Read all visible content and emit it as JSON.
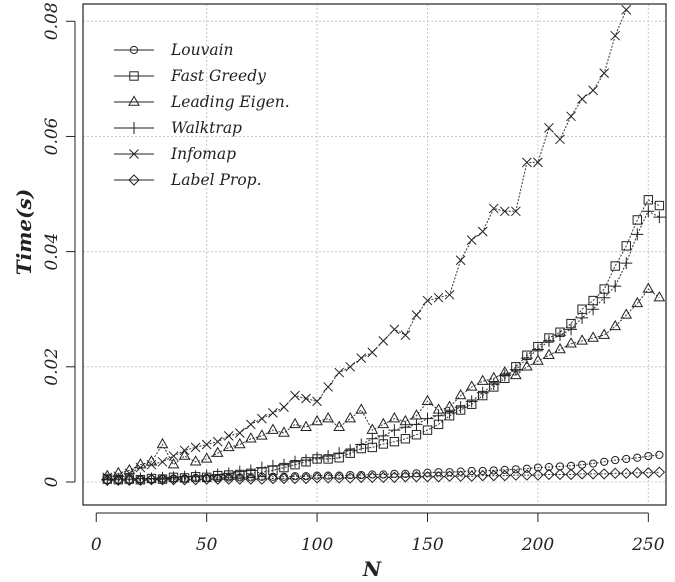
{
  "chart_data": {
    "type": "line",
    "xlabel": "N",
    "ylabel": "Time(s)",
    "xlim": [
      -6,
      258
    ],
    "ylim": [
      -0.004,
      0.083
    ],
    "xticks": [
      0,
      50,
      100,
      150,
      200,
      250
    ],
    "xtick_labels": [
      "0",
      "50",
      "100",
      "150",
      "200",
      "250"
    ],
    "yticks": [
      0,
      0.02,
      0.04,
      0.06,
      0.08
    ],
    "ytick_labels": [
      "0",
      "0.02",
      "0.04",
      "0.06",
      "0.08"
    ],
    "grid": true,
    "legend_position": "top-left",
    "series": [
      {
        "name": "Louvain",
        "marker": "circle",
        "x": [
          5,
          10,
          15,
          20,
          25,
          30,
          35,
          40,
          45,
          50,
          55,
          60,
          65,
          70,
          75,
          80,
          85,
          90,
          95,
          100,
          105,
          110,
          115,
          120,
          125,
          130,
          135,
          140,
          145,
          150,
          155,
          160,
          165,
          170,
          175,
          180,
          185,
          190,
          195,
          200,
          205,
          210,
          215,
          220,
          225,
          230,
          235,
          240,
          245,
          250,
          255
        ],
        "values": [
          0.0003,
          0.0004,
          0.0004,
          0.0005,
          0.0005,
          0.0006,
          0.0006,
          0.0006,
          0.0007,
          0.0007,
          0.0007,
          0.0008,
          0.0008,
          0.0008,
          0.0009,
          0.0009,
          0.0009,
          0.001,
          0.001,
          0.0011,
          0.0011,
          0.0011,
          0.0012,
          0.0012,
          0.0013,
          0.0013,
          0.0014,
          0.0014,
          0.0015,
          0.0016,
          0.0017,
          0.0017,
          0.0018,
          0.0019,
          0.0019,
          0.002,
          0.0021,
          0.0022,
          0.0023,
          0.0025,
          0.0026,
          0.0027,
          0.0028,
          0.003,
          0.0032,
          0.0035,
          0.0038,
          0.004,
          0.0042,
          0.0045,
          0.0047
        ]
      },
      {
        "name": "Fast Greedy",
        "marker": "square",
        "x": [
          5,
          10,
          15,
          20,
          25,
          30,
          35,
          40,
          45,
          50,
          55,
          60,
          65,
          70,
          75,
          80,
          85,
          90,
          95,
          100,
          105,
          110,
          115,
          120,
          125,
          130,
          135,
          140,
          145,
          150,
          155,
          160,
          165,
          170,
          175,
          180,
          185,
          190,
          195,
          200,
          205,
          210,
          215,
          220,
          225,
          230,
          235,
          240,
          245,
          250,
          255
        ],
        "values": [
          0.0005,
          0.0004,
          0.0005,
          0.0004,
          0.0006,
          0.0005,
          0.0008,
          0.0007,
          0.0009,
          0.0008,
          0.0011,
          0.0012,
          0.0013,
          0.0015,
          0.0017,
          0.002,
          0.0025,
          0.003,
          0.0035,
          0.004,
          0.004,
          0.0042,
          0.005,
          0.0058,
          0.006,
          0.0066,
          0.007,
          0.0075,
          0.0082,
          0.009,
          0.01,
          0.0115,
          0.0125,
          0.0135,
          0.015,
          0.0165,
          0.018,
          0.02,
          0.022,
          0.0235,
          0.025,
          0.026,
          0.0275,
          0.03,
          0.0315,
          0.0335,
          0.0375,
          0.041,
          0.0455,
          0.049,
          0.048
        ]
      },
      {
        "name": "Leading Eigen.",
        "marker": "triangle",
        "x": [
          5,
          10,
          15,
          20,
          25,
          30,
          35,
          40,
          45,
          50,
          55,
          60,
          65,
          70,
          75,
          80,
          85,
          90,
          95,
          100,
          105,
          110,
          115,
          120,
          125,
          130,
          135,
          140,
          145,
          150,
          155,
          160,
          165,
          170,
          175,
          180,
          185,
          190,
          195,
          200,
          205,
          210,
          215,
          220,
          225,
          230,
          235,
          240,
          245,
          250,
          255
        ],
        "values": [
          0.001,
          0.0015,
          0.002,
          0.003,
          0.0035,
          0.0065,
          0.003,
          0.0045,
          0.0035,
          0.004,
          0.005,
          0.006,
          0.0065,
          0.0075,
          0.008,
          0.009,
          0.0085,
          0.01,
          0.0095,
          0.0105,
          0.011,
          0.0095,
          0.011,
          0.0125,
          0.009,
          0.01,
          0.011,
          0.0105,
          0.0115,
          0.014,
          0.0125,
          0.013,
          0.015,
          0.0165,
          0.0175,
          0.018,
          0.019,
          0.0185,
          0.02,
          0.021,
          0.022,
          0.023,
          0.024,
          0.0245,
          0.025,
          0.0255,
          0.027,
          0.029,
          0.031,
          0.0335,
          0.032
        ]
      },
      {
        "name": "Walktrap",
        "marker": "plus",
        "x": [
          5,
          10,
          15,
          20,
          25,
          30,
          35,
          40,
          45,
          50,
          55,
          60,
          65,
          70,
          75,
          80,
          85,
          90,
          95,
          100,
          105,
          110,
          115,
          120,
          125,
          130,
          135,
          140,
          145,
          150,
          155,
          160,
          165,
          170,
          175,
          180,
          185,
          190,
          195,
          200,
          205,
          210,
          215,
          220,
          225,
          230,
          235,
          240,
          245,
          250,
          255
        ],
        "values": [
          0.0004,
          0.0005,
          0.0005,
          0.0006,
          0.0006,
          0.0007,
          0.0008,
          0.0009,
          0.001,
          0.0011,
          0.0013,
          0.0015,
          0.0018,
          0.002,
          0.0025,
          0.0028,
          0.003,
          0.0035,
          0.0038,
          0.0042,
          0.0045,
          0.005,
          0.0055,
          0.0065,
          0.0075,
          0.008,
          0.009,
          0.0095,
          0.01,
          0.011,
          0.0115,
          0.012,
          0.013,
          0.014,
          0.0155,
          0.017,
          0.0185,
          0.0195,
          0.0215,
          0.023,
          0.0245,
          0.0255,
          0.0265,
          0.0285,
          0.03,
          0.032,
          0.034,
          0.038,
          0.043,
          0.047,
          0.046
        ]
      },
      {
        "name": "Infomap",
        "marker": "cross",
        "x": [
          5,
          10,
          15,
          20,
          25,
          30,
          35,
          40,
          45,
          50,
          55,
          60,
          65,
          70,
          75,
          80,
          85,
          90,
          95,
          100,
          105,
          110,
          115,
          120,
          125,
          130,
          135,
          140,
          145,
          150,
          155,
          160,
          165,
          170,
          175,
          180,
          185,
          190,
          195,
          200,
          205,
          210,
          215,
          220,
          225,
          230,
          235,
          240
        ],
        "values": [
          0.0008,
          0.001,
          0.0015,
          0.0025,
          0.003,
          0.0035,
          0.0045,
          0.0055,
          0.006,
          0.0065,
          0.007,
          0.008,
          0.0085,
          0.01,
          0.011,
          0.012,
          0.013,
          0.015,
          0.0145,
          0.014,
          0.0165,
          0.019,
          0.02,
          0.0215,
          0.0225,
          0.0245,
          0.0265,
          0.0255,
          0.029,
          0.0315,
          0.032,
          0.0325,
          0.0385,
          0.042,
          0.0435,
          0.0475,
          0.047,
          0.047,
          0.0555,
          0.0555,
          0.0615,
          0.0595,
          0.0635,
          0.0665,
          0.068,
          0.071,
          0.0775,
          0.082
        ]
      },
      {
        "name": "Label Prop.",
        "marker": "diamond",
        "x": [
          5,
          10,
          15,
          20,
          25,
          30,
          35,
          40,
          45,
          50,
          55,
          60,
          65,
          70,
          75,
          80,
          85,
          90,
          95,
          100,
          105,
          110,
          115,
          120,
          125,
          130,
          135,
          140,
          145,
          150,
          155,
          160,
          165,
          170,
          175,
          180,
          185,
          190,
          195,
          200,
          205,
          210,
          215,
          220,
          225,
          230,
          235,
          240,
          245,
          250,
          255
        ],
        "values": [
          0.0003,
          0.0003,
          0.0003,
          0.0003,
          0.0004,
          0.0004,
          0.0004,
          0.0004,
          0.0004,
          0.0005,
          0.0005,
          0.0005,
          0.0005,
          0.0005,
          0.0005,
          0.0006,
          0.0006,
          0.0006,
          0.0006,
          0.0007,
          0.0007,
          0.0007,
          0.0007,
          0.0008,
          0.0008,
          0.0008,
          0.0008,
          0.0009,
          0.0009,
          0.0009,
          0.0009,
          0.001,
          0.001,
          0.001,
          0.0011,
          0.0011,
          0.0011,
          0.0012,
          0.0012,
          0.0012,
          0.0013,
          0.0013,
          0.0013,
          0.0014,
          0.0014,
          0.0014,
          0.0015,
          0.0015,
          0.0016,
          0.0016,
          0.0017
        ]
      }
    ]
  }
}
